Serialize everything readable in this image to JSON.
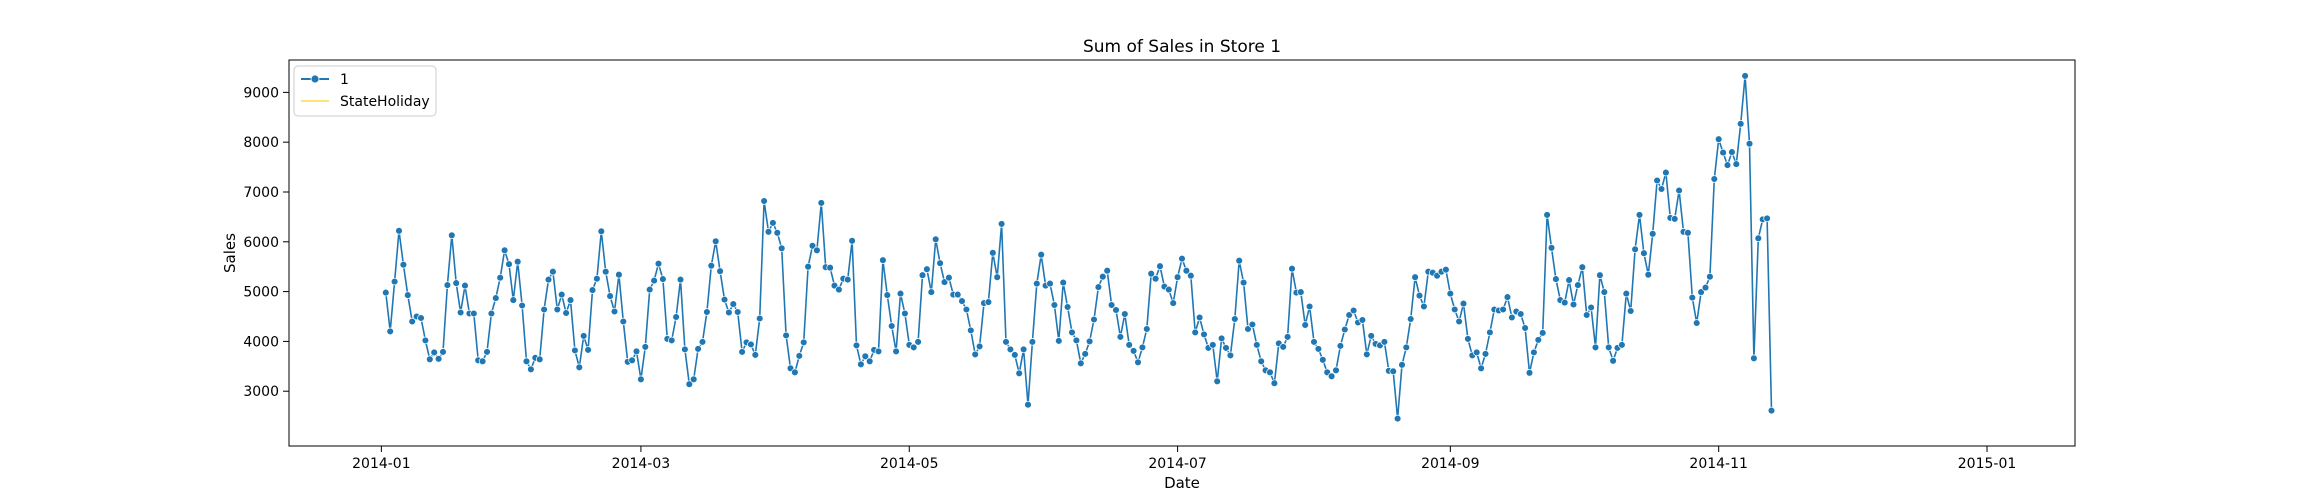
{
  "chart_data": {
    "type": "line",
    "title": "Sum of Sales in Store 1",
    "xlabel": "Date",
    "ylabel": "Sales",
    "xlim": [
      "2013-12-11",
      "2015-01-21"
    ],
    "ylim": [
      1900,
      9650
    ],
    "x_ticks": [
      "2014-01",
      "2014-03",
      "2014-05",
      "2014-07",
      "2014-09",
      "2014-11",
      "2015-01"
    ],
    "y_ticks": [
      3000,
      4000,
      5000,
      6000,
      7000,
      8000,
      9000
    ],
    "grid": false,
    "legend_position": "top-left",
    "series": [
      {
        "name": "1",
        "color": "#1f77b4",
        "marker": "circle",
        "start_date": "2014-01-02",
        "values": [
          4980,
          4200,
          5200,
          6220,
          5540,
          4930,
          4400,
          4500,
          4470,
          4020,
          3640,
          3780,
          3650,
          3790,
          5130,
          6130,
          5170,
          4580,
          5120,
          4560,
          4560,
          3620,
          3600,
          3790,
          4560,
          4870,
          5280,
          5830,
          5550,
          4830,
          5600,
          4720,
          3600,
          3440,
          3670,
          3640,
          4640,
          5240,
          5400,
          4640,
          4940,
          4570,
          4830,
          3820,
          3480,
          4110,
          3830,
          5030,
          5260,
          6210,
          5400,
          4910,
          4600,
          5340,
          4400,
          3590,
          3620,
          3800,
          3240,
          3890,
          5040,
          5220,
          5560,
          5250,
          4050,
          4020,
          4490,
          5240,
          3840,
          3140,
          3240,
          3850,
          3990,
          4590,
          5520,
          6010,
          5410,
          4840,
          4580,
          4750,
          4590,
          3790,
          3980,
          3940,
          3730,
          4460,
          6820,
          6200,
          6380,
          6180,
          5870,
          4120,
          3460,
          3380,
          3710,
          3980,
          5500,
          5920,
          5830,
          6780,
          5490,
          5480,
          5120,
          5040,
          5260,
          5240,
          6020,
          3920,
          3540,
          3700,
          3600,
          3830,
          3800,
          5630,
          4930,
          4310,
          3800,
          4960,
          4560,
          3930,
          3880,
          3990,
          5330,
          5450,
          4990,
          6050,
          5570,
          5190,
          5280,
          4940,
          4940,
          4810,
          4640,
          4220,
          3740,
          3900,
          4770,
          4790,
          5780,
          5290,
          6360,
          3990,
          3840,
          3730,
          3360,
          3840,
          2730,
          3990,
          5160,
          5740,
          5120,
          5160,
          4730,
          4010,
          5180,
          4690,
          4180,
          4020,
          3560,
          3750,
          4000,
          4440,
          5090,
          5300,
          5420,
          4730,
          4630,
          4090,
          4550,
          3930,
          3810,
          3580,
          3880,
          4250,
          5360,
          5260,
          5510,
          5100,
          5040,
          4770,
          5290,
          5660,
          5420,
          5320,
          4180,
          4480,
          4140,
          3870,
          3930,
          3200,
          4060,
          3870,
          3720,
          4450,
          5620,
          5180,
          4250,
          4340,
          3930,
          3600,
          3420,
          3380,
          3160,
          3960,
          3890,
          4090,
          5460,
          4980,
          4990,
          4330,
          4700,
          3990,
          3850,
          3630,
          3380,
          3300,
          3420,
          3910,
          4240,
          4530,
          4620,
          4380,
          4430,
          3740,
          4110,
          3950,
          3920,
          3990,
          3410,
          3400,
          2450,
          3530,
          3880,
          4450,
          5290,
          4920,
          4700,
          5400,
          5380,
          5320,
          5400,
          5440,
          4960,
          4640,
          4400,
          4760,
          4050,
          3720,
          3780,
          3460,
          3750,
          4180,
          4640,
          4620,
          4640,
          4890,
          4480,
          4600,
          4550,
          4270,
          3370,
          3780,
          4030,
          4170,
          6540,
          5880,
          5250,
          4830,
          4780,
          5230,
          4740,
          5130,
          5490,
          4530,
          4680,
          3880,
          5330,
          4990,
          3880,
          3610,
          3870,
          3930,
          4960,
          4610,
          5850,
          6540,
          5770,
          5340,
          6160,
          7230,
          7060,
          7390,
          6480,
          6460,
          7030,
          6200,
          6180,
          4880,
          4370,
          4990,
          5080,
          5300,
          7260,
          8060,
          7790,
          7540,
          7800,
          7560,
          8370,
          9330,
          7970,
          3660,
          6070,
          6450,
          6470,
          2610
        ]
      },
      {
        "name": "StateHoliday",
        "color": "#ffd84a",
        "values": []
      }
    ]
  }
}
